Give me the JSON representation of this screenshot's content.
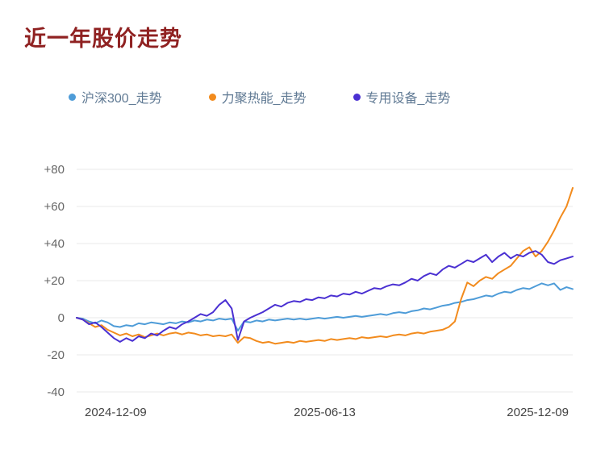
{
  "page": {
    "title": "近一年股价走势"
  },
  "axes": {
    "y_label_color": "#666666",
    "x_label_color": "#444444",
    "grid_color": "#e9e9e9"
  },
  "chart_data": {
    "type": "line",
    "title": "近一年股价走势",
    "xlabel": "",
    "ylabel": "",
    "ylim": [
      -46,
      92
    ],
    "grid": true,
    "legend_position": "top",
    "y_ticks": [
      80,
      60,
      40,
      20,
      0,
      -20,
      -40
    ],
    "y_tick_labels": [
      "+80",
      "+60",
      "+40",
      "+20",
      "0",
      "-20",
      "-40"
    ],
    "x_tick_labels": [
      "2024-12-09",
      "2025-06-13",
      "2025-12-09"
    ],
    "series": [
      {
        "name": "沪深300_走势",
        "color": "#4e9cd8",
        "values": [
          0,
          -0.5,
          -2,
          -3,
          -1.5,
          -2.5,
          -4.5,
          -5,
          -4,
          -4.5,
          -3,
          -3.5,
          -2.5,
          -3,
          -3.5,
          -2.5,
          -3,
          -2,
          -2.5,
          -1.5,
          -2,
          -1,
          -1.5,
          -0.5,
          -1,
          -0.5,
          -7,
          -2,
          -2.5,
          -1.5,
          -2,
          -1,
          -1.5,
          -1,
          -0.5,
          -1,
          -0.5,
          -1,
          -0.5,
          0,
          -0.5,
          0,
          0.5,
          0,
          0.5,
          1,
          0.5,
          1,
          1.5,
          2,
          1.5,
          2.5,
          3,
          2.5,
          3.5,
          4,
          5,
          4.5,
          5.5,
          6.5,
          7,
          8,
          8.5,
          9.5,
          10,
          11,
          12,
          11.5,
          13,
          14,
          13.5,
          15,
          16,
          15.5,
          17,
          18.5,
          17.5,
          18.5,
          15,
          16.5,
          15.5
        ]
      },
      {
        "name": "力聚热能_走势",
        "color": "#f28b1d",
        "values": [
          0,
          -1,
          -3,
          -5,
          -4,
          -6.5,
          -8,
          -9.5,
          -8.5,
          -10,
          -9,
          -10.5,
          -9.5,
          -8.5,
          -9.5,
          -8.5,
          -8,
          -9,
          -8,
          -8.5,
          -9.5,
          -9,
          -10,
          -9.5,
          -10,
          -9,
          -13.5,
          -10.5,
          -11,
          -12.5,
          -13.5,
          -13,
          -14,
          -13.5,
          -13,
          -13.5,
          -12.5,
          -13,
          -12.5,
          -12,
          -12.5,
          -11.5,
          -12,
          -11.5,
          -11,
          -11.5,
          -10.5,
          -11,
          -10.5,
          -10,
          -10.5,
          -9.5,
          -9,
          -9.5,
          -8.5,
          -8,
          -8.5,
          -7.5,
          -7,
          -6.5,
          -5,
          -2,
          10,
          19,
          17,
          20,
          22,
          21,
          24,
          26,
          28,
          32,
          36,
          38,
          33,
          36,
          41,
          47,
          54,
          60,
          70
        ]
      },
      {
        "name": "专用设备_走势",
        "color": "#4a30d2",
        "values": [
          0,
          -1,
          -3.5,
          -2.5,
          -5,
          -8,
          -11,
          -13,
          -11,
          -12.5,
          -10,
          -11,
          -8.5,
          -9.5,
          -7,
          -5,
          -6,
          -3.5,
          -2,
          0,
          2,
          1,
          3,
          7,
          9.5,
          5,
          -12,
          -2,
          0,
          1.5,
          3,
          5,
          7,
          6,
          8,
          9,
          8.5,
          10,
          9.5,
          11,
          10.5,
          12,
          11.5,
          13,
          12.5,
          14,
          13,
          14.5,
          16,
          15.5,
          17,
          18,
          17.5,
          19,
          21,
          20,
          22.5,
          24,
          23,
          26,
          28,
          27,
          29,
          31,
          30,
          32,
          34,
          30,
          33,
          35,
          32,
          34,
          33,
          35,
          36,
          34,
          30,
          29,
          31,
          32,
          33
        ]
      }
    ]
  }
}
